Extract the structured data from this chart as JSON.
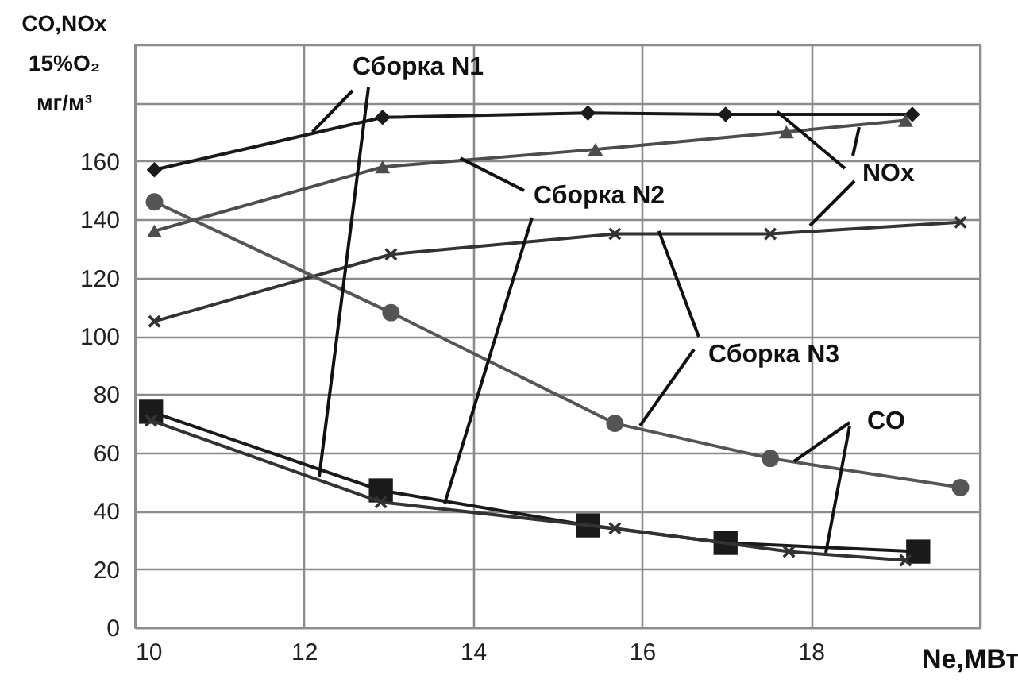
{
  "chart_data": {
    "type": "line",
    "xlabel": "Ne,МВт",
    "ylabel": "CO,NOx 15%O₂ мг/м³",
    "xlim": [
      10,
      20
    ],
    "xticks": [
      10,
      12,
      14,
      16,
      18,
      {
        "value": 20,
        "label": null
      }
    ],
    "ylim": [
      0,
      200
    ],
    "yticks": [
      0,
      20,
      40,
      60,
      80,
      100,
      120,
      140,
      160,
      {
        "value": 180,
        "label": null
      },
      {
        "value": 200,
        "label": null
      }
    ],
    "grid": true,
    "line_style": "solid",
    "annotations": [
      {
        "text": "Сборка N1",
        "x": 12.1,
        "y": 170
      },
      {
        "text": "Сборка N2",
        "x": 13.85,
        "y": 161
      },
      {
        "text": "Сборка N3",
        "x": 16.2,
        "y": 136
      },
      {
        "text": "NOx",
        "x": 17.6,
        "y": 177
      },
      {
        "text": "CO",
        "x": 17.8,
        "y": 57
      }
    ],
    "series": [
      {
        "color": "#1a1a1a",
        "marker": "diamond",
        "x": [
          10.23,
          12.93,
          15.36,
          16.99,
          19.2
        ],
        "values": [
          157,
          175,
          176.5,
          176,
          176
        ]
      },
      {
        "color": "#4d4d4d",
        "marker": "triangle",
        "x": [
          10.23,
          12.93,
          15.45,
          17.71,
          19.12
        ],
        "values": [
          136,
          158,
          164,
          170,
          174
        ]
      },
      {
        "color": "#333333",
        "marker": "cross",
        "x": [
          10.23,
          13.03,
          15.68,
          17.52,
          19.77
        ],
        "values": [
          105,
          128,
          135,
          135,
          139
        ]
      },
      {
        "color": "#555555",
        "marker": "circle",
        "x": [
          10.23,
          13.03,
          15.68,
          17.52,
          19.77
        ],
        "values": [
          146,
          108,
          70,
          58,
          48
        ]
      },
      {
        "color": "#1a1a1a",
        "marker": "square",
        "x": [
          10.19,
          12.91,
          15.36,
          16.99,
          19.27
        ],
        "values": [
          74,
          47,
          35,
          29,
          26
        ]
      },
      {
        "color": "#333333",
        "marker": "cross",
        "x": [
          10.19,
          12.91,
          15.68,
          17.74,
          19.12
        ],
        "values": [
          71,
          43,
          34,
          26,
          23
        ]
      }
    ]
  }
}
